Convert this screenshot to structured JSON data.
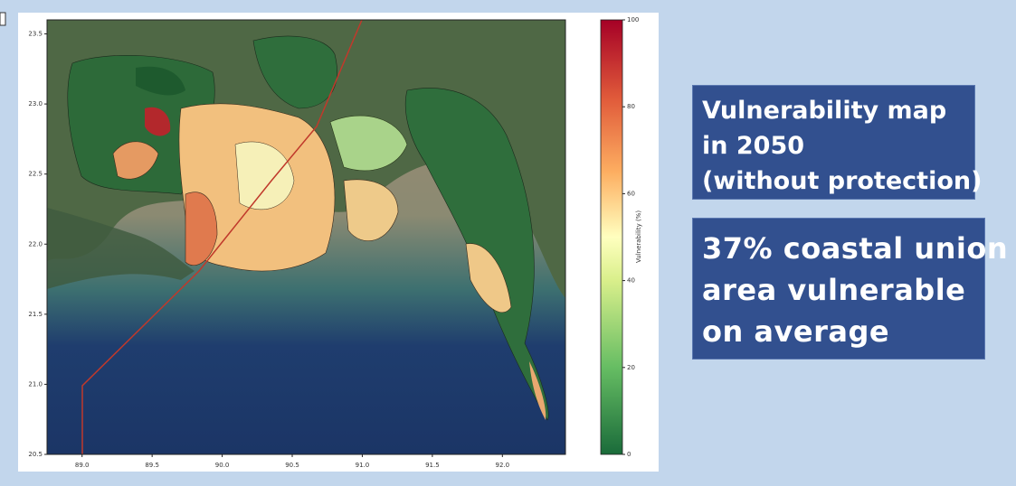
{
  "map": {
    "xlim": [
      88.75,
      92.45
    ],
    "ylim": [
      20.5,
      23.6
    ],
    "xticks": [
      {
        "value": 89,
        "label": "89.0"
      },
      89.5,
      {
        "value": 90,
        "label": "90.0"
      },
      90.5,
      {
        "value": 91,
        "label": "91.0"
      },
      91.5,
      {
        "value": 92,
        "label": "92.0"
      }
    ],
    "yticks": [
      {
        "value": 20.5,
        "label": "20.5"
      },
      {
        "value": 21,
        "label": "21.0"
      },
      21.5,
      {
        "value": 22,
        "label": "22.0"
      },
      22.5,
      {
        "value": 23,
        "label": "23.0"
      },
      23.5
    ],
    "colorbar": {
      "label": "Vulnerability (%)",
      "lim": [
        0,
        100
      ],
      "ticks": [
        0,
        20,
        40,
        60,
        80,
        100
      ]
    }
  },
  "callouts": [
    {
      "lines": [
        "Vulnerability map",
        "in 2050",
        "(without protection)"
      ]
    },
    {
      "lines": [
        "37% coastal union",
        "area vulnerable",
        "on average"
      ]
    }
  ]
}
